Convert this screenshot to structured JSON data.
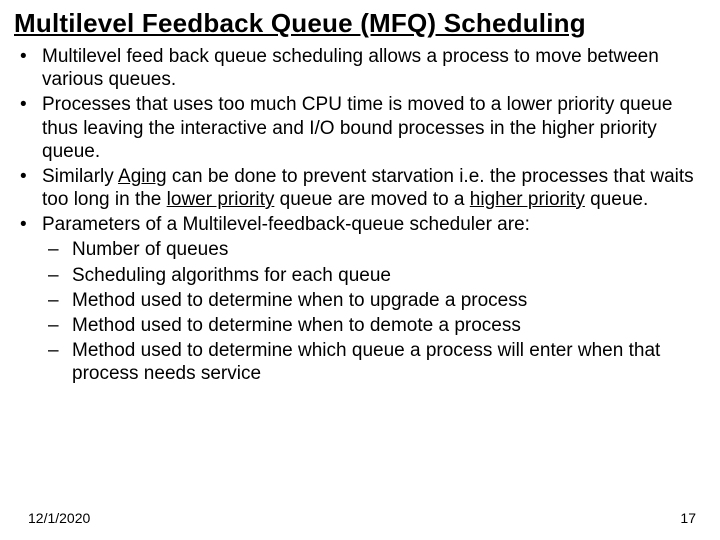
{
  "title": "Multilevel Feedback Queue (MFQ) Scheduling",
  "bullets": {
    "b1": "Multilevel feed back queue scheduling allows a process to move between various queues.",
    "b2": "Processes that uses too much CPU time is moved to a lower priority queue thus leaving the interactive and I/O bound processes in the higher priority queue.",
    "b3_pre": "Similarly ",
    "b3_u1": "Aging",
    "b3_mid1": " can be done to prevent starvation i.e. the processes that waits too long in the ",
    "b3_u2": "lower priority",
    "b3_mid2": " queue are moved to a ",
    "b3_u3": "higher priority",
    "b3_post": " queue.",
    "b4": "Parameters of a Multilevel-feedback-queue scheduler are:",
    "sub": {
      "s1": "Number of queues",
      "s2": "Scheduling algorithms for each queue",
      "s3": "Method used to determine when to upgrade a process",
      "s4": "Method used to determine when to demote a process",
      "s5": "Method used to determine which queue a process will enter when that process needs service"
    }
  },
  "footer": {
    "date": "12/1/2020",
    "page": "17"
  },
  "style": {
    "background_color": "#ffffff",
    "text_color": "#000000",
    "font_family": "Comic Sans MS",
    "title_fontsize": 26,
    "body_fontsize": 19,
    "footer_fontsize": 14
  }
}
